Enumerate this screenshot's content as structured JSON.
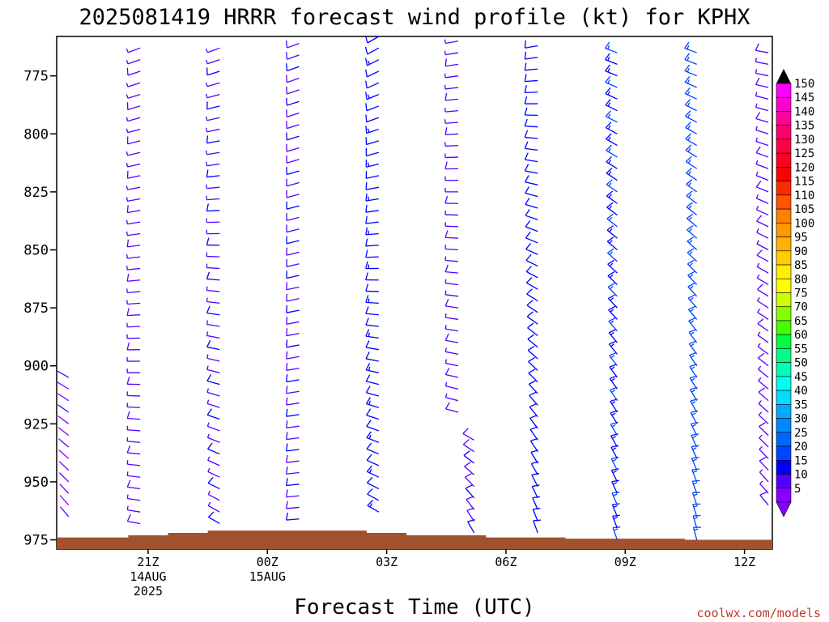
{
  "chart_data": {
    "type": "wind_barb_time_height",
    "title": "2025081419 HRRR forecast wind profile (kt) for KPHX",
    "xlabel": "Forecast Time (UTC)",
    "credit": "coolwx.com/models",
    "y_axis": {
      "type": "pressure",
      "units": "hPa",
      "inverted": true,
      "range": [
        979,
        758
      ],
      "ticks": [
        775,
        800,
        825,
        850,
        875,
        900,
        925,
        950,
        975
      ]
    },
    "x_axis": {
      "units": "hours_from_2025081419",
      "range": [
        -0.3,
        17.7
      ],
      "ticks": [
        {
          "hour": 2,
          "lines": [
            "21Z",
            "14AUG",
            "2025"
          ]
        },
        {
          "hour": 5,
          "lines": [
            "00Z",
            "15AUG"
          ]
        },
        {
          "hour": 8,
          "lines": [
            "03Z"
          ]
        },
        {
          "hour": 11,
          "lines": [
            "06Z"
          ]
        },
        {
          "hour": 14,
          "lines": [
            "09Z"
          ]
        },
        {
          "hour": 17,
          "lines": [
            "12Z"
          ]
        }
      ]
    },
    "colorbar": {
      "labels": [
        "150",
        "145",
        "140",
        "135",
        "130",
        "125",
        "120",
        "115",
        "110",
        "105",
        "100",
        "95",
        "90",
        "85",
        "80",
        "75",
        "70",
        "65",
        "60",
        "55",
        "50",
        "45",
        "40",
        "35",
        "30",
        "25",
        "20",
        "15",
        "10",
        "5"
      ],
      "top_color": "#000000",
      "bottom_color": "#8800ff",
      "colors": [
        "#ff00ff",
        "#ff00cc",
        "#ff0099",
        "#ff0066",
        "#ff0044",
        "#ff0022",
        "#ff0000",
        "#ff2a00",
        "#ff5500",
        "#ff7f00",
        "#ff9900",
        "#ffb300",
        "#ffcc00",
        "#ffee00",
        "#ffff00",
        "#ccff00",
        "#88ff00",
        "#44ff00",
        "#00ff44",
        "#00ff88",
        "#00ffbb",
        "#00ffee",
        "#00ddff",
        "#00aaff",
        "#0088ff",
        "#0066ff",
        "#0044ff",
        "#0000ff",
        "#5500ff",
        "#8800ff"
      ]
    },
    "surface_pressure": [
      {
        "hour": 0,
        "p": 974
      },
      {
        "hour": 1,
        "p": 974
      },
      {
        "hour": 2,
        "p": 973
      },
      {
        "hour": 3,
        "p": 972
      },
      {
        "hour": 4,
        "p": 971
      },
      {
        "hour": 5,
        "p": 971
      },
      {
        "hour": 6,
        "p": 971
      },
      {
        "hour": 7,
        "p": 971
      },
      {
        "hour": 8,
        "p": 972
      },
      {
        "hour": 9,
        "p": 973
      },
      {
        "hour": 10,
        "p": 973
      },
      {
        "hour": 11,
        "p": 974
      },
      {
        "hour": 12,
        "p": 974
      },
      {
        "hour": 13,
        "p": 974.5
      },
      {
        "hour": 14,
        "p": 974.5
      },
      {
        "hour": 15,
        "p": 974.5
      },
      {
        "hour": 16,
        "p": 975
      },
      {
        "hour": 17,
        "p": 975
      }
    ],
    "surface_color": "#a0522d",
    "series": [
      {
        "hour": 0,
        "levels_from": 905,
        "levels_to": 965,
        "speed": 5,
        "dir_low": 300,
        "dir_high": 320,
        "style": "stick"
      },
      {
        "hour": 1.8,
        "levels_from": 760,
        "levels_to": 968,
        "speed": 8,
        "dir_low": 250,
        "dir_high": 280
      },
      {
        "hour": 3.8,
        "levels_from": 762,
        "levels_to": 968,
        "speed": 9,
        "dir_low": 250,
        "dir_high": 300
      },
      {
        "hour": 5.8,
        "levels_from": 760,
        "levels_to": 966,
        "speed": 10,
        "dir_low": 250,
        "dir_high": 265
      },
      {
        "hour": 7.8,
        "levels_from": 758,
        "levels_to": 963,
        "speed": 13,
        "dir_low": 240,
        "dir_high": 300
      },
      {
        "hour": 9.8,
        "levels_from": 758,
        "levels_to": 920,
        "speed": 8,
        "dir_low": 260,
        "dir_high": 285
      },
      {
        "hour": 10.2,
        "levels_from": 930,
        "levels_to": 972,
        "speed": 10,
        "dir_low": 300,
        "dir_high": 330
      },
      {
        "hour": 11.8,
        "levels_from": 760,
        "levels_to": 972,
        "speed": 12,
        "dir_low": 260,
        "dir_high": 340
      },
      {
        "hour": 13.8,
        "levels_from": 762,
        "levels_to": 975,
        "speed": 15,
        "dir_low": 290,
        "dir_high": 340
      },
      {
        "hour": 15.8,
        "levels_from": 762,
        "levels_to": 975,
        "speed": 16,
        "dir_low": 290,
        "dir_high": 345
      },
      {
        "hour": 17.6,
        "levels_from": 762,
        "levels_to": 960,
        "speed": 8,
        "dir_low": 280,
        "dir_high": 320
      }
    ]
  }
}
